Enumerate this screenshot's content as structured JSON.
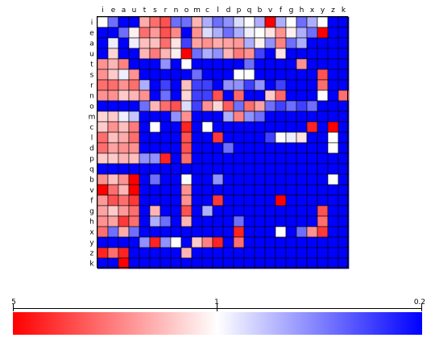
{
  "chart_data": {
    "type": "heatmap",
    "title": "",
    "xlabel": "",
    "ylabel": "",
    "letters": [
      "i",
      "e",
      "a",
      "u",
      "t",
      "s",
      "r",
      "n",
      "o",
      "m",
      "c",
      "l",
      "d",
      "p",
      "q",
      "b",
      "v",
      "f",
      "g",
      "h",
      "x",
      "y",
      "z",
      "k"
    ],
    "value_scale": "log",
    "color_range": [
      0.2,
      5
    ],
    "colorbar": {
      "ticks": [
        "5",
        "1",
        "0.2"
      ],
      "colors": {
        "high": "#ff0000",
        "mid": "#ffffff",
        "low": "#0000ff"
      }
    },
    "grid": true,
    "levels_note_units": "ratio; 5 = red, 1 = white, 0.2 = blue",
    "rows": [
      [
        1,
        0.4,
        0.2,
        0.2,
        1.7,
        2.5,
        3,
        0.4,
        0.4,
        1.6,
        0.6,
        0.4,
        0.5,
        0.8,
        1,
        0.6,
        5,
        0.6,
        1,
        0.4,
        0.6,
        1,
        0.2,
        0.2
      ],
      [
        0.2,
        0.2,
        0.4,
        1.1,
        2.5,
        1.9,
        3,
        2.1,
        0.2,
        2,
        0.8,
        0.6,
        0.4,
        0.6,
        0.9,
        1,
        1.2,
        2,
        1.1,
        0.6,
        0.4,
        5,
        0.2,
        0.2
      ],
      [
        0.2,
        0.9,
        0.2,
        0.9,
        1.5,
        1.5,
        2.5,
        1.2,
        0.3,
        1.8,
        2,
        1.7,
        1.8,
        1.9,
        0.6,
        1.1,
        0.5,
        2.2,
        0.4,
        0.6,
        0.2,
        0.2,
        0.2,
        0.2
      ],
      [
        0.2,
        1.3,
        0.2,
        0.2,
        1.6,
        2.3,
        1.6,
        1.1,
        5,
        0.4,
        0.6,
        0.5,
        1.6,
        2.3,
        2,
        0.3,
        0.2,
        1.2,
        0.2,
        0.2,
        0.2,
        0.2,
        0.2,
        0.2
      ],
      [
        2,
        1.6,
        2.2,
        0.2,
        0.2,
        0.2,
        0.5,
        0.2,
        1,
        0.2,
        0.2,
        0.2,
        0.2,
        0.2,
        0.4,
        0.2,
        0.2,
        0.2,
        0.2,
        2,
        0.2,
        0.2,
        0.2,
        0.2
      ],
      [
        2,
        1.4,
        0.9,
        2,
        0.2,
        0.2,
        0.2,
        0.2,
        0.2,
        0.4,
        0.2,
        0.2,
        0.2,
        1,
        1,
        0.2,
        0.2,
        0.2,
        0.2,
        0.2,
        0.2,
        3,
        0.2,
        0.2
      ],
      [
        2.5,
        2.5,
        2,
        2.5,
        0.6,
        0.2,
        0.3,
        0.2,
        1.5,
        0.3,
        0.3,
        0.2,
        0.5,
        0.5,
        0.3,
        0.5,
        0.2,
        0.3,
        0.2,
        0.2,
        0.2,
        2.5,
        0.2,
        0.2
      ],
      [
        2,
        2,
        1.4,
        1.6,
        2,
        0.2,
        0.4,
        0.2,
        1.3,
        0.3,
        0.3,
        3,
        0.2,
        2.6,
        0.2,
        0.2,
        1.4,
        2.6,
        0.2,
        0.2,
        0.2,
        1,
        0.2,
        2.5
      ],
      [
        0.2,
        0.2,
        0.2,
        0.2,
        0.4,
        1.6,
        2.5,
        3,
        0.8,
        0.3,
        2,
        1.3,
        2.8,
        0.4,
        2.5,
        1.8,
        0.4,
        0.3,
        0.4,
        0.3,
        0.4,
        0.2,
        0.2,
        0.2
      ],
      [
        1.3,
        1.4,
        0.9,
        0.7,
        0.2,
        0.2,
        0.2,
        0.5,
        2,
        0.2,
        0.2,
        0.2,
        0.6,
        2.2,
        0.5,
        0.4,
        0.2,
        0.2,
        0.2,
        0.2,
        0.2,
        0.2,
        0.2,
        0.2
      ],
      [
        1.4,
        2,
        1.5,
        2.3,
        0.2,
        1,
        0.2,
        0.2,
        4,
        0.2,
        1,
        0.2,
        0.2,
        0.2,
        0.2,
        0.2,
        0.2,
        0.2,
        0.2,
        0.2,
        4,
        0.2,
        5,
        0.2
      ],
      [
        2.5,
        1.5,
        1.7,
        2.5,
        0.2,
        0.2,
        0.2,
        0.2,
        3,
        0.2,
        0.2,
        3.5,
        0.2,
        0.2,
        0.2,
        0.2,
        0.3,
        1,
        0.9,
        1.2,
        0.2,
        0.2,
        1,
        0.2
      ],
      [
        2.5,
        1.8,
        2,
        2,
        0.2,
        0.2,
        0.2,
        0.2,
        3,
        0.2,
        0.2,
        0.2,
        0.4,
        0.2,
        0.2,
        0.2,
        0.2,
        0.2,
        0.2,
        0.2,
        0.2,
        0.2,
        1,
        0.2
      ],
      [
        1.4,
        1.4,
        1.6,
        1.5,
        0.5,
        0.5,
        4,
        0.2,
        2.5,
        0.2,
        0.2,
        0.2,
        0.2,
        0.2,
        0.2,
        0.2,
        0.2,
        0.2,
        0.2,
        0.2,
        0.2,
        0.2,
        0.2,
        0.2
      ],
      [
        0.2,
        0.2,
        0.2,
        0.2,
        0.2,
        0.2,
        0.2,
        0.2,
        0.2,
        0.2,
        0.2,
        0.2,
        0.2,
        0.2,
        0.2,
        0.2,
        0.2,
        0.2,
        0.2,
        0.2,
        0.2,
        0.2,
        0.2,
        0.2
      ],
      [
        2,
        1.5,
        2,
        5,
        0.2,
        0.4,
        0.2,
        0.2,
        1,
        0.2,
        0.2,
        0.5,
        0.2,
        0.2,
        0.2,
        0.2,
        0.2,
        0.2,
        0.2,
        0.2,
        0.2,
        0.2,
        1,
        0.2
      ],
      [
        5,
        2.5,
        1.6,
        5,
        0.2,
        0.2,
        0.2,
        0.2,
        2,
        0.2,
        0.2,
        0.2,
        0.2,
        0.2,
        0.2,
        0.2,
        0.2,
        0.2,
        0.2,
        0.2,
        0.2,
        0.2,
        0.2,
        0.2
      ],
      [
        1.9,
        3,
        2.5,
        3.5,
        0.2,
        0.2,
        0.2,
        0.2,
        2,
        0.2,
        0.2,
        3.5,
        0.2,
        0.2,
        0.2,
        0.2,
        0.2,
        5,
        0.2,
        0.2,
        0.2,
        0.2,
        0.2,
        0.2
      ],
      [
        1.8,
        1.4,
        1.9,
        2.5,
        0.2,
        1.6,
        0.2,
        0.2,
        3,
        0.2,
        0.6,
        0.2,
        0.2,
        0.2,
        0.2,
        0.2,
        0.2,
        0.2,
        0.2,
        0.2,
        0.2,
        3,
        0.2,
        0.2
      ],
      [
        2,
        1.8,
        3.5,
        2.5,
        0.2,
        0.6,
        0.4,
        0.2,
        1.6,
        0.2,
        0.2,
        0.2,
        0.2,
        0.4,
        0.2,
        0.2,
        0.2,
        0.2,
        0.2,
        0.2,
        0.2,
        2.5,
        0.2,
        0.2
      ],
      [
        2.5,
        0.4,
        1.7,
        0.4,
        0.2,
        0.2,
        0.2,
        0.2,
        0.2,
        0.2,
        0.2,
        0.2,
        0.2,
        4,
        0.2,
        0.2,
        0.2,
        1,
        0.2,
        0.4,
        2,
        3.5,
        0.2,
        0.2
      ],
      [
        0.2,
        0.2,
        0.2,
        0.2,
        0.5,
        4,
        0.5,
        1,
        0.2,
        1.4,
        2.2,
        4,
        0.2,
        2.5,
        0.2,
        0.2,
        0.2,
        0.2,
        0.2,
        0.2,
        0.2,
        0.2,
        0.2,
        0.2
      ],
      [
        4,
        2.5,
        4,
        0.2,
        0.2,
        0.2,
        0.2,
        0.2,
        1.6,
        0.2,
        0.2,
        0.2,
        0.2,
        0.2,
        0.2,
        0.2,
        0.2,
        0.2,
        0.2,
        0.2,
        0.2,
        0.2,
        0.2,
        0.2
      ],
      [
        0.2,
        0.2,
        5,
        0.2,
        0.2,
        0.2,
        0.2,
        0.2,
        0.2,
        0.2,
        0.2,
        0.2,
        0.2,
        0.2,
        0.2,
        0.2,
        0.2,
        0.2,
        0.2,
        0.2,
        0.2,
        0.2,
        0.2,
        0.2
      ]
    ]
  }
}
